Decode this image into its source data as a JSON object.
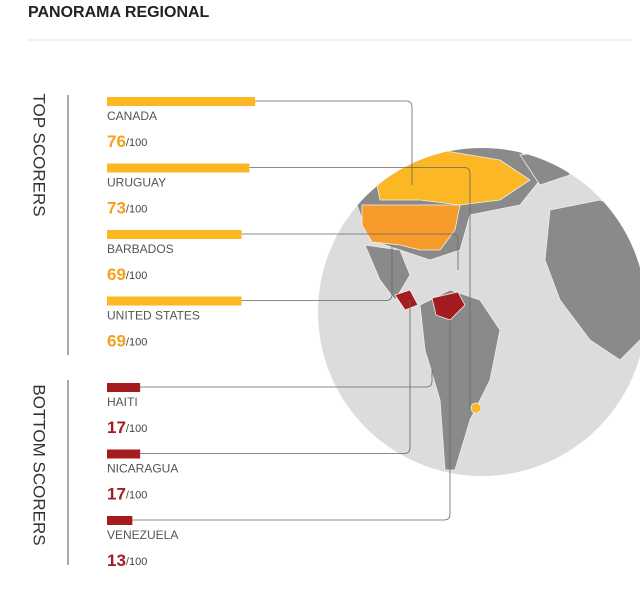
{
  "title": "PANORAMA REGIONAL",
  "chart_data": {
    "type": "bar",
    "xlim": [
      0,
      100
    ],
    "max_label": "/100",
    "groups": [
      {
        "name": "TOP SCORERS",
        "color": "#fbb824",
        "label_color": "#f5a01a",
        "categories": [
          "CANADA",
          "URUGUAY",
          "BARBADOS",
          "UNITED STATES"
        ],
        "values": [
          76,
          73,
          69,
          69
        ]
      },
      {
        "name": "BOTTOM SCORERS",
        "color": "#a51c20",
        "label_color": "#a51c20",
        "categories": [
          "HAITI",
          "NICARAGUA",
          "VENEZUELA"
        ],
        "values": [
          17,
          17,
          13
        ]
      }
    ]
  }
}
